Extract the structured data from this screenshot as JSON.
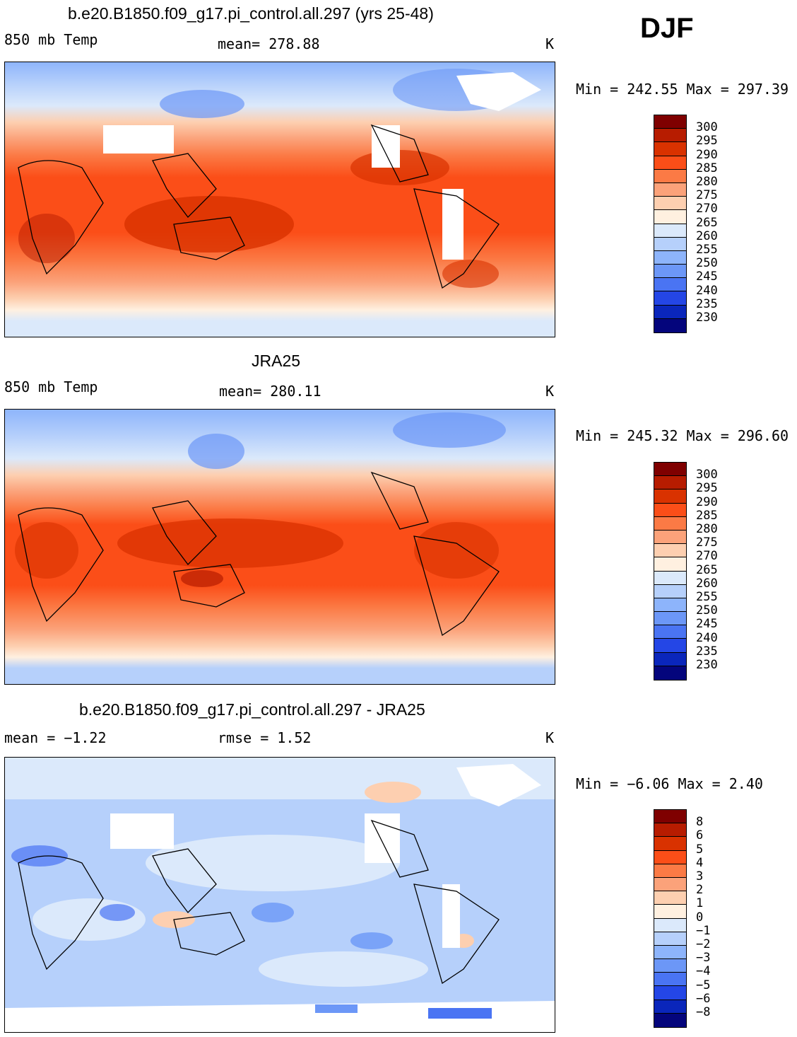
{
  "season": "DJF",
  "palette_abs": [
    "#7f0000",
    "#b71c00",
    "#d93200",
    "#fb4e18",
    "#fb7a45",
    "#fba27a",
    "#fdcfb0",
    "#fff0e0",
    "#dbe9fb",
    "#b6d0fb",
    "#8db4fb",
    "#6c97f7",
    "#4a74f3",
    "#2446e6",
    "#0a26bb",
    "#04057c"
  ],
  "palette_diff": [
    "#7f0000",
    "#b71c00",
    "#d93200",
    "#fb4e18",
    "#fb7a45",
    "#fba27a",
    "#fdcfb0",
    "#fff0e0",
    "#dbe9fb",
    "#b6d0fb",
    "#8db4fb",
    "#6c97f7",
    "#4a74f3",
    "#2446e6",
    "#0a26bb",
    "#04057c"
  ],
  "panels": [
    {
      "title": "b.e20.B1850.f09_g17.pi_control.all.297 (yrs 25-48)",
      "left_label": "850 mb Temp",
      "center_label": "mean= 278.88",
      "units": "K",
      "minmax": "Min = 242.55 Max = 297.39",
      "ticks": [
        "300",
        "295",
        "290",
        "285",
        "280",
        "275",
        "270",
        "265",
        "260",
        "255",
        "250",
        "245",
        "240",
        "235",
        "230"
      ]
    },
    {
      "title": "JRA25",
      "left_label": "850 mb Temp",
      "center_label": "mean= 280.11",
      "units": "K",
      "minmax": "Min = 245.32 Max = 296.60",
      "ticks": [
        "300",
        "295",
        "290",
        "285",
        "280",
        "275",
        "270",
        "265",
        "260",
        "255",
        "250",
        "245",
        "240",
        "235",
        "230"
      ]
    },
    {
      "title": "b.e20.B1850.f09_g17.pi_control.all.297 - JRA25",
      "left_label": "mean =   −1.22",
      "center_label": "rmse =    1.52",
      "units": "K",
      "minmax": "Min =  −6.06 Max =    2.40",
      "ticks": [
        "8",
        "6",
        "5",
        "4",
        "3",
        "2",
        "1",
        "0",
        "−1",
        "−2",
        "−3",
        "−4",
        "−5",
        "−6",
        "−8"
      ]
    }
  ]
}
